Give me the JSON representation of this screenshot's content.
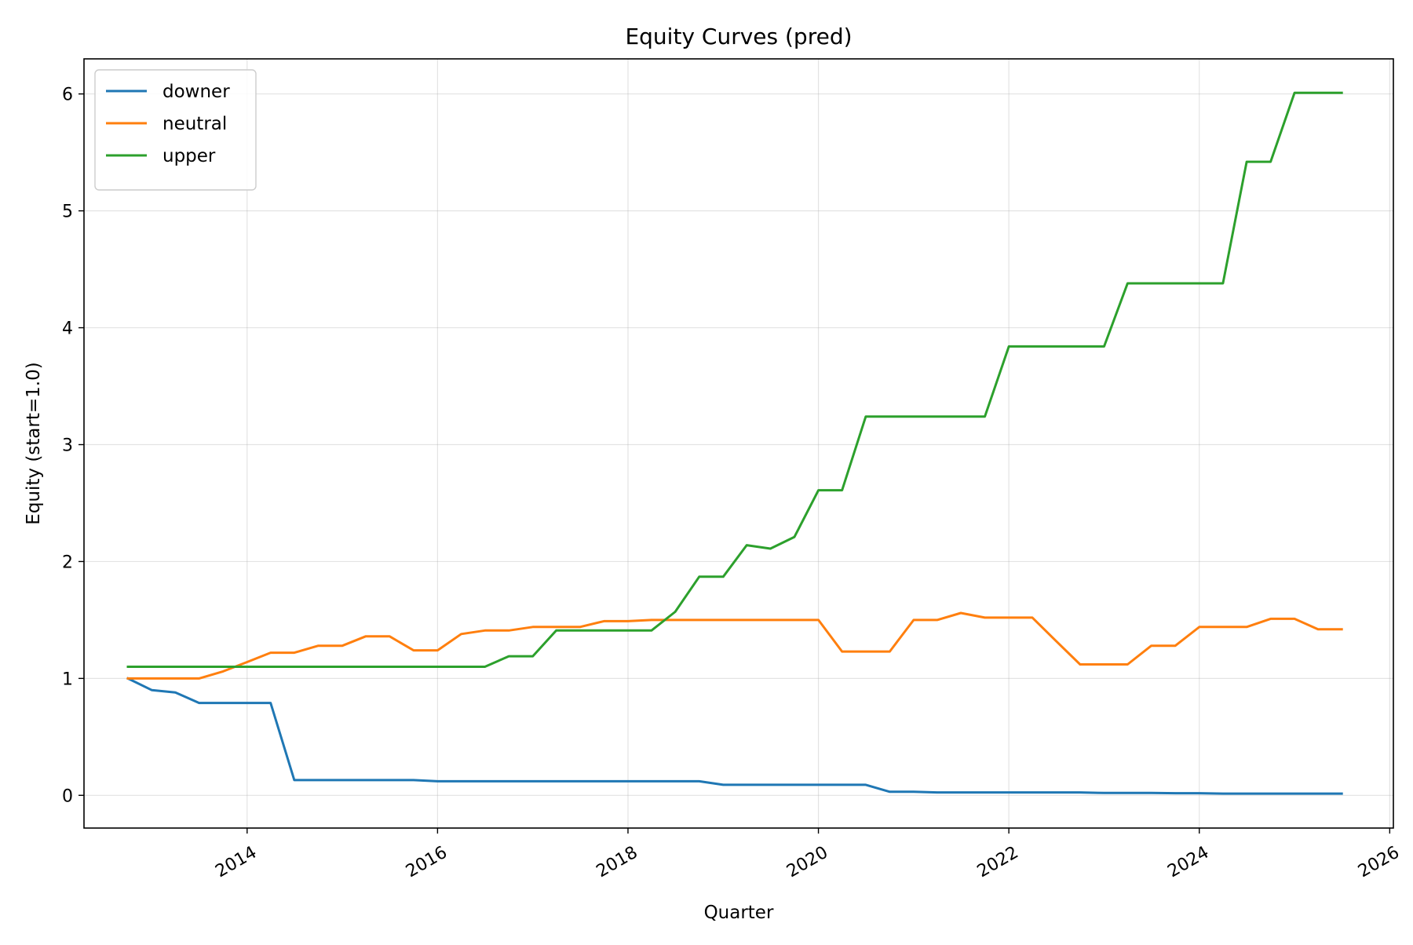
{
  "chart_data": {
    "type": "line",
    "title": "Equity Curves (pred)",
    "xlabel": "Quarter",
    "ylabel": "Equity (start=1.0)",
    "x": [
      "2012-10-01",
      "2013-01-01",
      "2013-04-01",
      "2013-07-01",
      "2013-10-01",
      "2014-01-01",
      "2014-04-01",
      "2014-07-01",
      "2014-10-01",
      "2015-01-01",
      "2015-04-01",
      "2015-07-01",
      "2015-10-01",
      "2016-01-01",
      "2016-04-01",
      "2016-07-01",
      "2016-10-01",
      "2017-01-01",
      "2017-04-01",
      "2017-07-01",
      "2017-10-01",
      "2018-01-01",
      "2018-04-01",
      "2018-07-01",
      "2018-10-01",
      "2019-01-01",
      "2019-04-01",
      "2019-07-01",
      "2019-10-01",
      "2020-01-01",
      "2020-04-01",
      "2020-07-01",
      "2020-10-01",
      "2021-01-01",
      "2021-04-01",
      "2021-07-01",
      "2021-10-01",
      "2022-01-01",
      "2022-04-01",
      "2022-07-01",
      "2022-10-01",
      "2023-01-01",
      "2023-04-01",
      "2023-07-01",
      "2023-10-01",
      "2024-01-01",
      "2024-04-01",
      "2024-07-01",
      "2024-10-01",
      "2025-01-01",
      "2025-04-01",
      "2025-07-01"
    ],
    "series": [
      {
        "name": "downer",
        "color": "#1f77b4",
        "values": [
          1.0,
          0.9,
          0.88,
          0.79,
          0.79,
          0.79,
          0.79,
          0.13,
          0.13,
          0.13,
          0.13,
          0.13,
          0.13,
          0.12,
          0.12,
          0.12,
          0.12,
          0.12,
          0.12,
          0.12,
          0.12,
          0.12,
          0.12,
          0.12,
          0.12,
          0.09,
          0.09,
          0.09,
          0.09,
          0.09,
          0.09,
          0.09,
          0.03,
          0.03,
          0.025,
          0.025,
          0.025,
          0.025,
          0.025,
          0.025,
          0.025,
          0.02,
          0.02,
          0.02,
          0.018,
          0.018,
          0.015,
          0.015,
          0.015,
          0.015,
          0.015,
          0.015
        ]
      },
      {
        "name": "neutral",
        "color": "#ff7f0e",
        "values": [
          1.0,
          1.0,
          1.0,
          1.0,
          1.06,
          1.14,
          1.22,
          1.22,
          1.28,
          1.28,
          1.36,
          1.36,
          1.24,
          1.24,
          1.38,
          1.41,
          1.41,
          1.44,
          1.44,
          1.44,
          1.49,
          1.49,
          1.5,
          1.5,
          1.5,
          1.5,
          1.5,
          1.5,
          1.5,
          1.5,
          1.23,
          1.23,
          1.23,
          1.5,
          1.5,
          1.56,
          1.52,
          1.52,
          1.52,
          1.32,
          1.12,
          1.12,
          1.12,
          1.28,
          1.28,
          1.44,
          1.44,
          1.44,
          1.51,
          1.51,
          1.42,
          1.42
        ]
      },
      {
        "name": "upper",
        "color": "#2ca02c",
        "values": [
          1.1,
          1.1,
          1.1,
          1.1,
          1.1,
          1.1,
          1.1,
          1.1,
          1.1,
          1.1,
          1.1,
          1.1,
          1.1,
          1.1,
          1.1,
          1.1,
          1.19,
          1.19,
          1.41,
          1.41,
          1.41,
          1.41,
          1.41,
          1.57,
          1.87,
          1.87,
          2.14,
          2.11,
          2.21,
          2.61,
          2.61,
          3.24,
          3.24,
          3.24,
          3.24,
          3.24,
          3.24,
          3.84,
          3.84,
          3.84,
          3.84,
          3.84,
          4.38,
          4.38,
          4.38,
          4.38,
          4.38,
          5.42,
          5.42,
          6.01,
          6.01,
          6.01
        ]
      }
    ],
    "xlim": [
      "2012-04-15",
      "2026-01-15"
    ],
    "ylim": [
      -0.28,
      6.3
    ],
    "yticks": [
      "0",
      "1",
      "2",
      "3",
      "4",
      "5",
      "6"
    ],
    "xticks": [
      "2014",
      "2016",
      "2018",
      "2020",
      "2022",
      "2024",
      "2026"
    ],
    "grid": true,
    "legend_position": "upper-left"
  }
}
